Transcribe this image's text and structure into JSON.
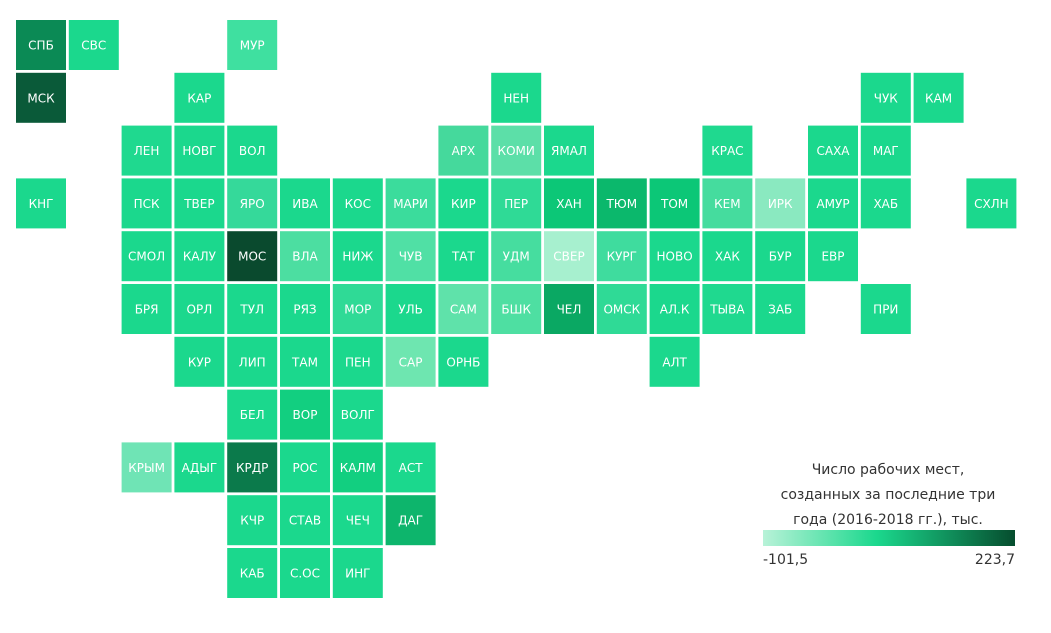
{
  "tiles": [
    {
      "label": "СПБ",
      "color": "#0b8a55"
    },
    {
      "label": "СВС",
      "color": "#1bd88d"
    },
    {
      "label": "МУР",
      "color": "#3fe0a0"
    },
    {
      "label": "МСК",
      "color": "#0a5a39"
    },
    {
      "label": "КАР",
      "color": "#1bd88d"
    },
    {
      "label": "НЕН",
      "color": "#1bd88d"
    },
    {
      "label": "ЧУК",
      "color": "#1bd88d"
    },
    {
      "label": "КАМ",
      "color": "#1bd88d"
    },
    {
      "label": "ЛЕН",
      "color": "#1fd98f"
    },
    {
      "label": "НОВГ",
      "color": "#1bd88d"
    },
    {
      "label": "ВОЛ",
      "color": "#1bd88d"
    },
    {
      "label": "АРХ",
      "color": "#45d99c"
    },
    {
      "label": "КОМИ",
      "color": "#5cdfa8"
    },
    {
      "label": "ЯМАЛ",
      "color": "#1bd88d"
    },
    {
      "label": "КРАС",
      "color": "#1fd98f"
    },
    {
      "label": "САХА",
      "color": "#1bd88d"
    },
    {
      "label": "МАГ",
      "color": "#1bd88d"
    },
    {
      "label": "КНГ",
      "color": "#1bd88d"
    },
    {
      "label": "ПСК",
      "color": "#1bd88d"
    },
    {
      "label": "ТВЕР",
      "color": "#1bd88d"
    },
    {
      "label": "ЯРО",
      "color": "#35d99a"
    },
    {
      "label": "ИВА",
      "color": "#1bd88d"
    },
    {
      "label": "КОС",
      "color": "#1bd88d"
    },
    {
      "label": "МАРИ",
      "color": "#3bdc9c"
    },
    {
      "label": "КИР",
      "color": "#1bd88d"
    },
    {
      "label": "ПЕР",
      "color": "#2fda96"
    },
    {
      "label": "ХАН",
      "color": "#0cc777"
    },
    {
      "label": "ТЮМ",
      "color": "#0bb86c"
    },
    {
      "label": "ТОМ",
      "color": "#0cc777"
    },
    {
      "label": "КЕМ",
      "color": "#45dc9e"
    },
    {
      "label": "ИРК",
      "color": "#8ae9c0"
    },
    {
      "label": "АМУР",
      "color": "#1bd88d"
    },
    {
      "label": "ХАБ",
      "color": "#1bd88d"
    },
    {
      "label": "СХЛН",
      "color": "#1bd88d"
    },
    {
      "label": "СМОЛ",
      "color": "#1bd88d"
    },
    {
      "label": "КАЛУ",
      "color": "#1bd88d"
    },
    {
      "label": "МОС",
      "color": "#0a4a2e"
    },
    {
      "label": "ВЛА",
      "color": "#4cdea1"
    },
    {
      "label": "НИЖ",
      "color": "#1bd88d"
    },
    {
      "label": "ЧУВ",
      "color": "#50e0a5"
    },
    {
      "label": "ТАТ",
      "color": "#1bd88d"
    },
    {
      "label": "УДМ",
      "color": "#46dd9f"
    },
    {
      "label": "СВЕР",
      "color": "#a7f0cf"
    },
    {
      "label": "КУРГ",
      "color": "#3fdc9e"
    },
    {
      "label": "НОВО",
      "color": "#1bd88d"
    },
    {
      "label": "ХАК",
      "color": "#1bd88d"
    },
    {
      "label": "БУР",
      "color": "#1bd88d"
    },
    {
      "label": "ЕВР",
      "color": "#1bd88d"
    },
    {
      "label": "БРЯ",
      "color": "#1bd88d"
    },
    {
      "label": "ОРЛ",
      "color": "#1bd88d"
    },
    {
      "label": "ТУЛ",
      "color": "#1bd88d"
    },
    {
      "label": "РЯЗ",
      "color": "#1bd88d"
    },
    {
      "label": "МОР",
      "color": "#2fda96"
    },
    {
      "label": "УЛЬ",
      "color": "#1bd88d"
    },
    {
      "label": "САМ",
      "color": "#5fe2aa"
    },
    {
      "label": "БШК",
      "color": "#4edfa2"
    },
    {
      "label": "ЧЕЛ",
      "color": "#0aa863"
    },
    {
      "label": "ОМСК",
      "color": "#2fda96"
    },
    {
      "label": "АЛ.К",
      "color": "#1bd88d"
    },
    {
      "label": "ТЫВА",
      "color": "#1fd98f"
    },
    {
      "label": "ЗАБ",
      "color": "#1bd88d"
    },
    {
      "label": "ПРИ",
      "color": "#1bd88d"
    },
    {
      "label": "КУР",
      "color": "#1bd88d"
    },
    {
      "label": "ЛИП",
      "color": "#1bd88d"
    },
    {
      "label": "ТАМ",
      "color": "#1bd88d"
    },
    {
      "label": "ПЕН",
      "color": "#1bd88d"
    },
    {
      "label": "САР",
      "color": "#6ee6b0"
    },
    {
      "label": "ОРНБ",
      "color": "#1bd88d"
    },
    {
      "label": "АЛТ",
      "color": "#1bd88d"
    },
    {
      "label": "БЕЛ",
      "color": "#1bd88d"
    },
    {
      "label": "ВОР",
      "color": "#12cf80"
    },
    {
      "label": "ВОЛГ",
      "color": "#1bd88d"
    },
    {
      "label": "КРЫМ",
      "color": "#6fe4b5"
    },
    {
      "label": "АДЫГ",
      "color": "#1bd88d"
    },
    {
      "label": "КРДР",
      "color": "#0b7a4b"
    },
    {
      "label": "РОС",
      "color": "#1bd88d"
    },
    {
      "label": "КАЛМ",
      "color": "#12cf80"
    },
    {
      "label": "АСТ",
      "color": "#1bd88d"
    },
    {
      "label": "КЧР",
      "color": "#1bd88d"
    },
    {
      "label": "СТАВ",
      "color": "#1bd88d"
    },
    {
      "label": "ЧЕЧ",
      "color": "#1bd88d"
    },
    {
      "label": "ДАГ",
      "color": "#0db56c"
    },
    {
      "label": "КАБ",
      "color": "#1bd88d"
    },
    {
      "label": "С.ОС",
      "color": "#1bd88d"
    },
    {
      "label": "ИНГ",
      "color": "#1bd88d"
    }
  ],
  "legend": {
    "title": [
      "Число рабочих мест,",
      "созданных за последние три",
      "года (2016-2018 гг.), тыс."
    ],
    "min": "-101,5",
    "max": "223,7",
    "color_low": "#b8f2d8",
    "color_mid": "#1bd88d",
    "color_high": "#064d2e"
  }
}
